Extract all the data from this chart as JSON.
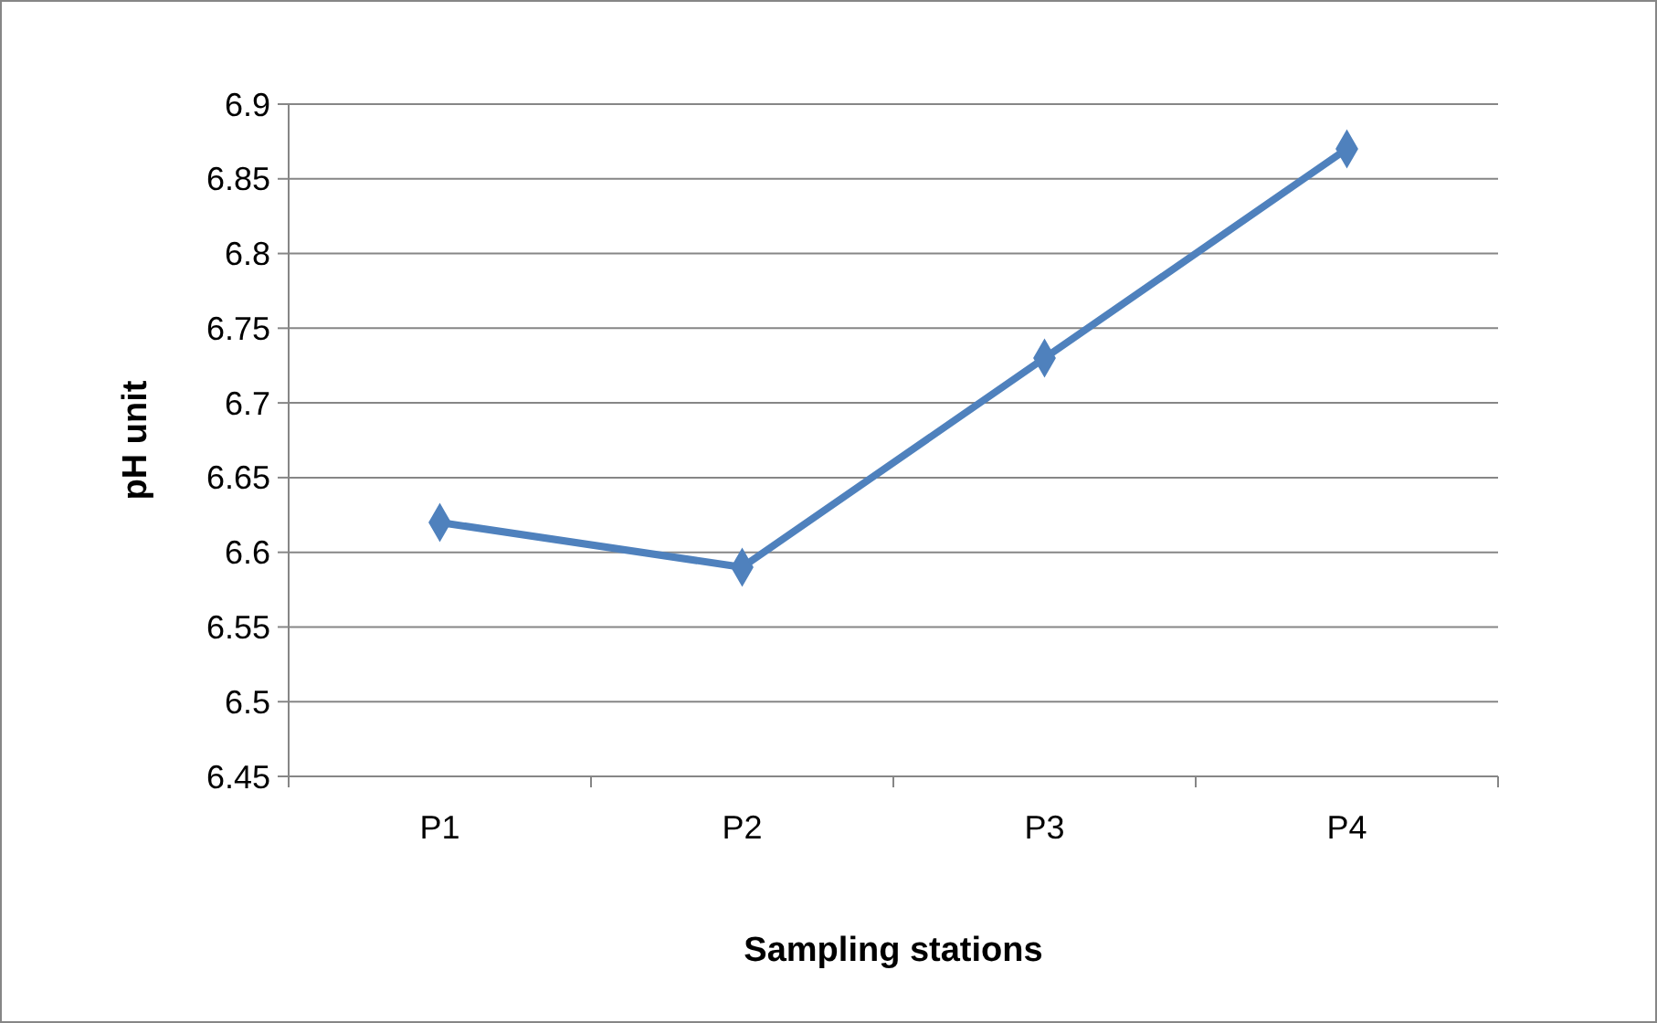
{
  "chart_data": {
    "type": "line",
    "xlabel": "Sampling stations",
    "ylabel": "pH unit",
    "categories": [
      "P1",
      "P2",
      "P3",
      "P4"
    ],
    "series": [
      {
        "color": "#4f81bd",
        "values": [
          6.62,
          6.59,
          6.73,
          6.87
        ]
      }
    ],
    "ylim": [
      6.45,
      6.9
    ],
    "yticks": [
      6.45,
      6.5,
      6.55,
      6.6,
      6.65,
      6.7,
      6.75,
      6.8,
      6.85,
      6.9
    ],
    "grid": "y",
    "marker": "diamond",
    "line_style": "solid"
  }
}
